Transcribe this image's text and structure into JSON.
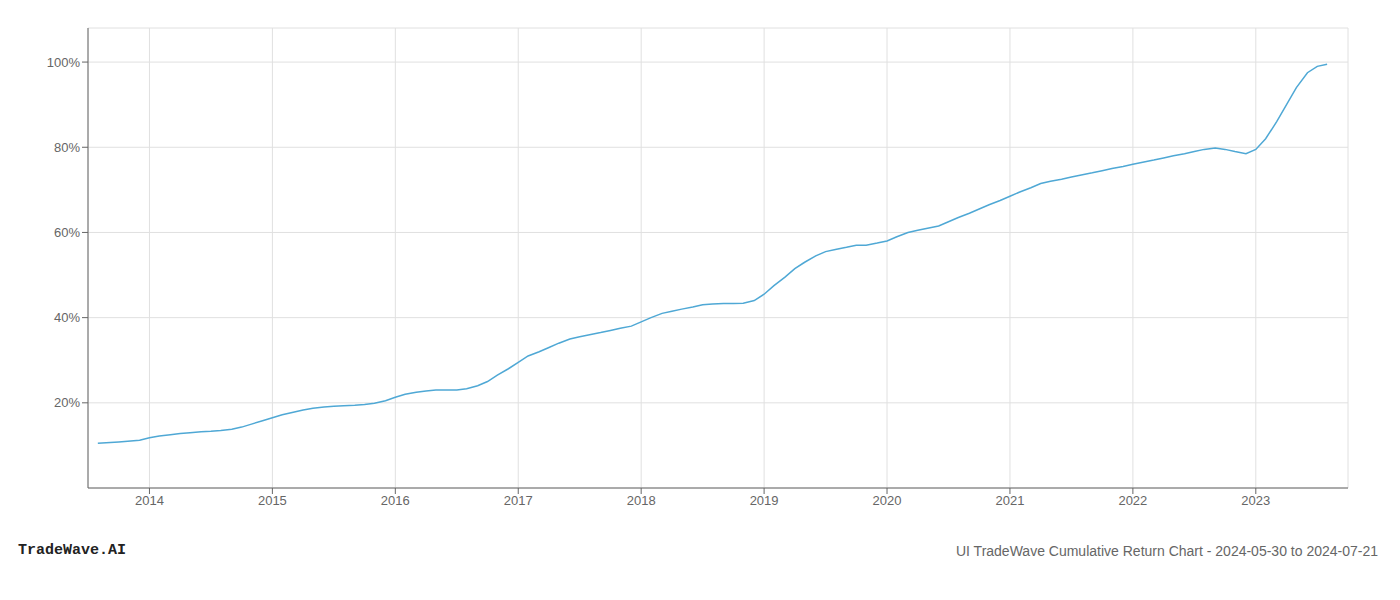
{
  "chart_data": {
    "type": "line",
    "title": "UI TradeWave Cumulative Return Chart - 2024-05-30 to 2024-07-21",
    "annotations": [
      "TradeWave.AI"
    ],
    "color": "#4fa8d5",
    "grid": true,
    "x": [
      2013.58,
      2013.75,
      2013.92,
      2014.0,
      2014.08,
      2014.17,
      2014.25,
      2014.33,
      2014.42,
      2014.5,
      2014.58,
      2014.67,
      2014.75,
      2014.83,
      2014.92,
      2015.0,
      2015.08,
      2015.17,
      2015.25,
      2015.33,
      2015.42,
      2015.5,
      2015.58,
      2015.67,
      2015.75,
      2015.83,
      2015.92,
      2016.0,
      2016.08,
      2016.17,
      2016.25,
      2016.33,
      2016.42,
      2016.5,
      2016.58,
      2016.67,
      2016.75,
      2016.83,
      2016.92,
      2017.0,
      2017.08,
      2017.17,
      2017.25,
      2017.33,
      2017.42,
      2017.5,
      2017.58,
      2017.67,
      2017.75,
      2017.83,
      2017.92,
      2018.0,
      2018.08,
      2018.17,
      2018.25,
      2018.33,
      2018.42,
      2018.5,
      2018.58,
      2018.67,
      2018.75,
      2018.83,
      2018.92,
      2019.0,
      2019.08,
      2019.17,
      2019.25,
      2019.33,
      2019.42,
      2019.5,
      2019.58,
      2019.67,
      2019.75,
      2019.83,
      2019.92,
      2020.0,
      2020.08,
      2020.17,
      2020.25,
      2020.33,
      2020.42,
      2020.5,
      2020.58,
      2020.67,
      2020.75,
      2020.83,
      2020.92,
      2021.0,
      2021.08,
      2021.17,
      2021.25,
      2021.33,
      2021.42,
      2021.5,
      2021.58,
      2021.67,
      2021.75,
      2021.83,
      2021.92,
      2022.0,
      2022.08,
      2022.17,
      2022.25,
      2022.33,
      2022.42,
      2022.5,
      2022.58,
      2022.67,
      2022.75,
      2022.83,
      2022.92,
      2023.0,
      2023.08,
      2023.17,
      2023.25,
      2023.33,
      2023.42,
      2023.5,
      2023.58
    ],
    "values": [
      10.5,
      10.8,
      11.2,
      11.8,
      12.2,
      12.5,
      12.8,
      13.0,
      13.2,
      13.3,
      13.5,
      13.8,
      14.3,
      15.0,
      15.8,
      16.5,
      17.2,
      17.8,
      18.3,
      18.7,
      19.0,
      19.2,
      19.3,
      19.4,
      19.6,
      19.9,
      20.5,
      21.3,
      22.0,
      22.5,
      22.8,
      23.0,
      23.0,
      23.0,
      23.3,
      24.0,
      25.0,
      26.5,
      28.0,
      29.5,
      31.0,
      32.0,
      33.0,
      34.0,
      35.0,
      35.5,
      36.0,
      36.5,
      37.0,
      37.5,
      38.0,
      39.0,
      40.0,
      41.0,
      41.5,
      42.0,
      42.5,
      43.0,
      43.2,
      43.3,
      43.3,
      43.4,
      44.0,
      45.5,
      47.5,
      49.5,
      51.5,
      53.0,
      54.5,
      55.5,
      56.0,
      56.5,
      57.0,
      57.0,
      57.5,
      58.0,
      59.0,
      60.0,
      60.5,
      61.0,
      61.5,
      62.5,
      63.5,
      64.5,
      65.5,
      66.5,
      67.5,
      68.5,
      69.5,
      70.5,
      71.5,
      72.0,
      72.5,
      73.0,
      73.5,
      74.0,
      74.5,
      75.0,
      75.5,
      76.0,
      76.5,
      77.0,
      77.5,
      78.0,
      78.5,
      79.0,
      79.5,
      79.8,
      79.5,
      79.0,
      78.5,
      79.5,
      82.0,
      86.0,
      90.0,
      94.0,
      97.5,
      99.0,
      99.5
    ],
    "xlim": [
      2013.5,
      2023.75
    ],
    "xticks": [
      2014,
      2015,
      2016,
      2017,
      2018,
      2019,
      2020,
      2021,
      2022,
      2023
    ],
    "ylim": [
      0,
      108
    ],
    "yticks": [
      {
        "value": 20,
        "label": "20%"
      },
      {
        "value": 40,
        "label": "40%"
      },
      {
        "value": 60,
        "label": "60%"
      },
      {
        "value": 80,
        "label": "80%"
      },
      {
        "value": 100,
        "label": "100%"
      }
    ]
  }
}
